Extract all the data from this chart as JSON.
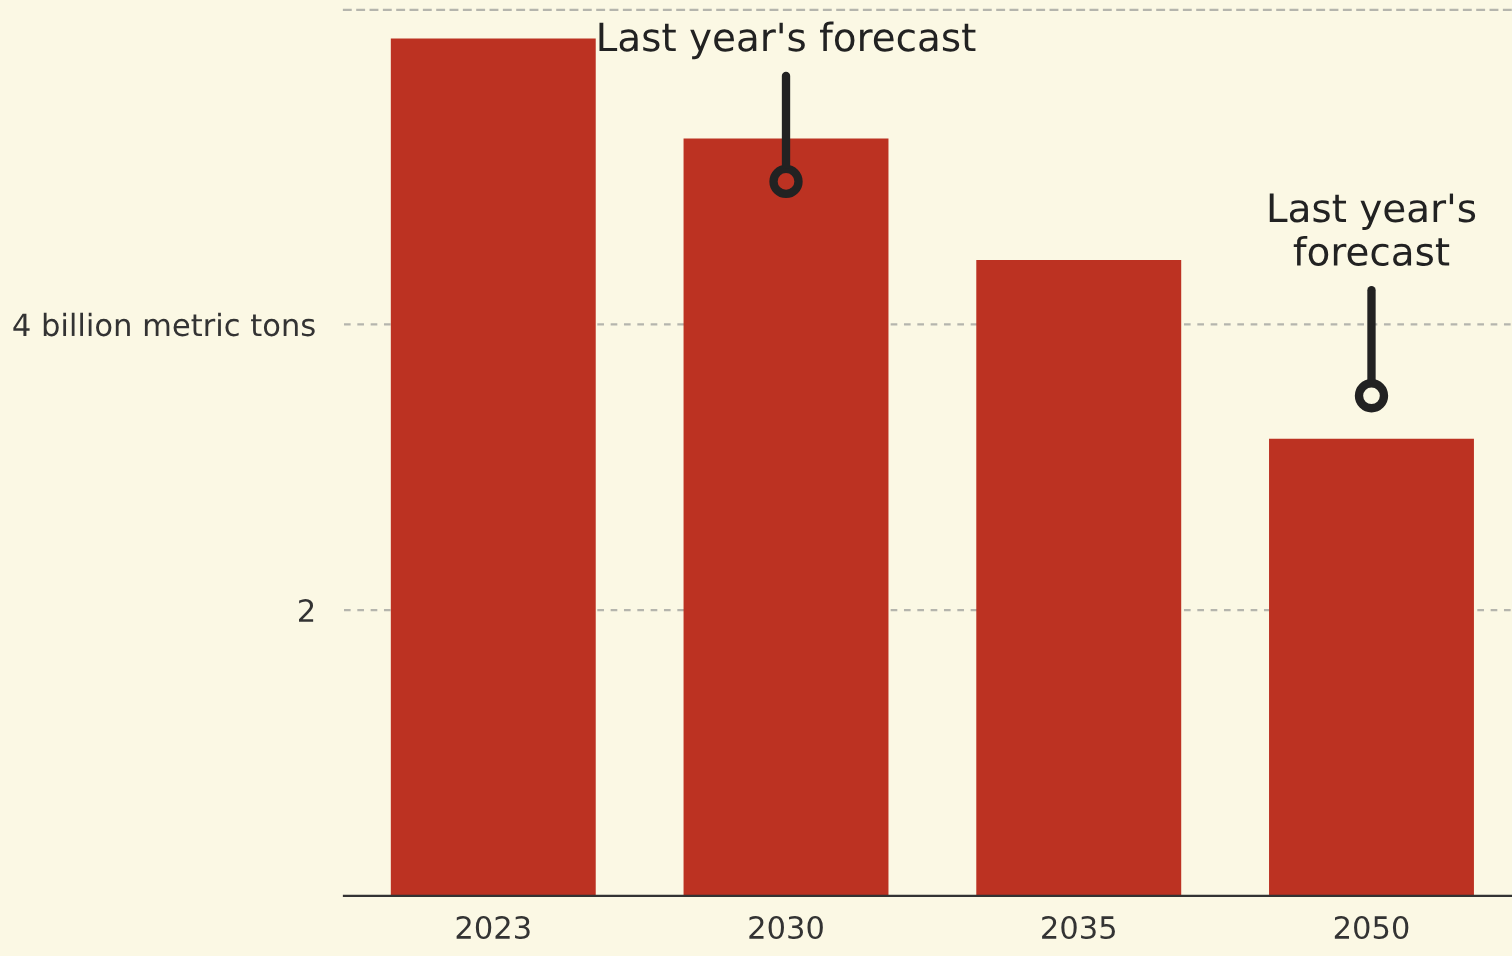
{
  "chart_data": {
    "type": "bar",
    "categories": [
      "2023",
      "2030",
      "2035",
      "2050"
    ],
    "values": [
      6.0,
      5.3,
      4.45,
      3.2
    ],
    "color": "#bc3222",
    "ylim": [
      0,
      6.2
    ],
    "yticks": [
      {
        "value": 2,
        "label": "2"
      },
      {
        "value": 4,
        "label": "4 billion metric tons"
      }
    ],
    "grid": "y",
    "annotations": [
      {
        "text": "Last year's forecast",
        "x": "2030",
        "y": 5.0
      },
      {
        "text": "Last year's\nforecast",
        "x": "2050",
        "y": 3.5
      }
    ]
  }
}
